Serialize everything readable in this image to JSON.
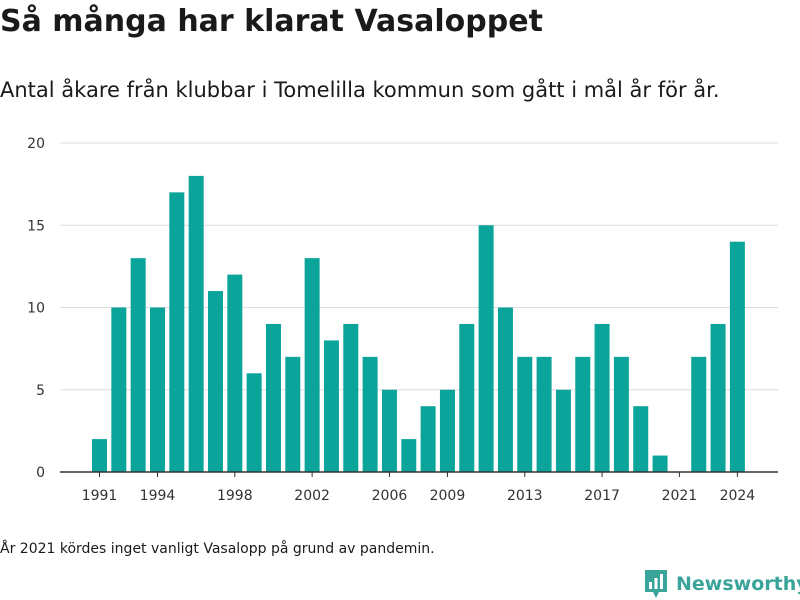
{
  "title": "Så många har klarat Vasaloppet",
  "subtitle": "Antal åkare från klubbar i Tomelilla kommun som gått i mål år för år.",
  "note": "År 2021 kördes inget vanligt Vasalopp på grund av pandemin.",
  "brand": "Newsworthy",
  "colors": {
    "bar": "#0ba49a",
    "grid": "#dddddd",
    "axis": "#333333",
    "text": "#333333",
    "brand": "#3aa39a"
  },
  "chart_data": {
    "type": "bar",
    "x": [
      1991,
      1992,
      1993,
      1994,
      1995,
      1996,
      1997,
      1998,
      1999,
      2000,
      2001,
      2002,
      2003,
      2004,
      2005,
      2006,
      2007,
      2008,
      2009,
      2010,
      2011,
      2012,
      2013,
      2014,
      2015,
      2016,
      2017,
      2018,
      2019,
      2020,
      2021,
      2022,
      2023,
      2024
    ],
    "values": [
      2,
      10,
      13,
      10,
      17,
      18,
      11,
      12,
      6,
      9,
      7,
      13,
      8,
      9,
      7,
      5,
      2,
      4,
      5,
      9,
      15,
      10,
      7,
      7,
      5,
      7,
      9,
      7,
      4,
      1,
      0,
      7,
      9,
      14
    ],
    "x_ticks": [
      "1991",
      "1994",
      "1998",
      "2002",
      "2006",
      "2009",
      "2013",
      "2017",
      "2021",
      "2024"
    ],
    "y_ticks": [
      "0",
      "5",
      "10",
      "15",
      "20"
    ],
    "ylim": [
      0,
      20
    ],
    "grid": true
  }
}
